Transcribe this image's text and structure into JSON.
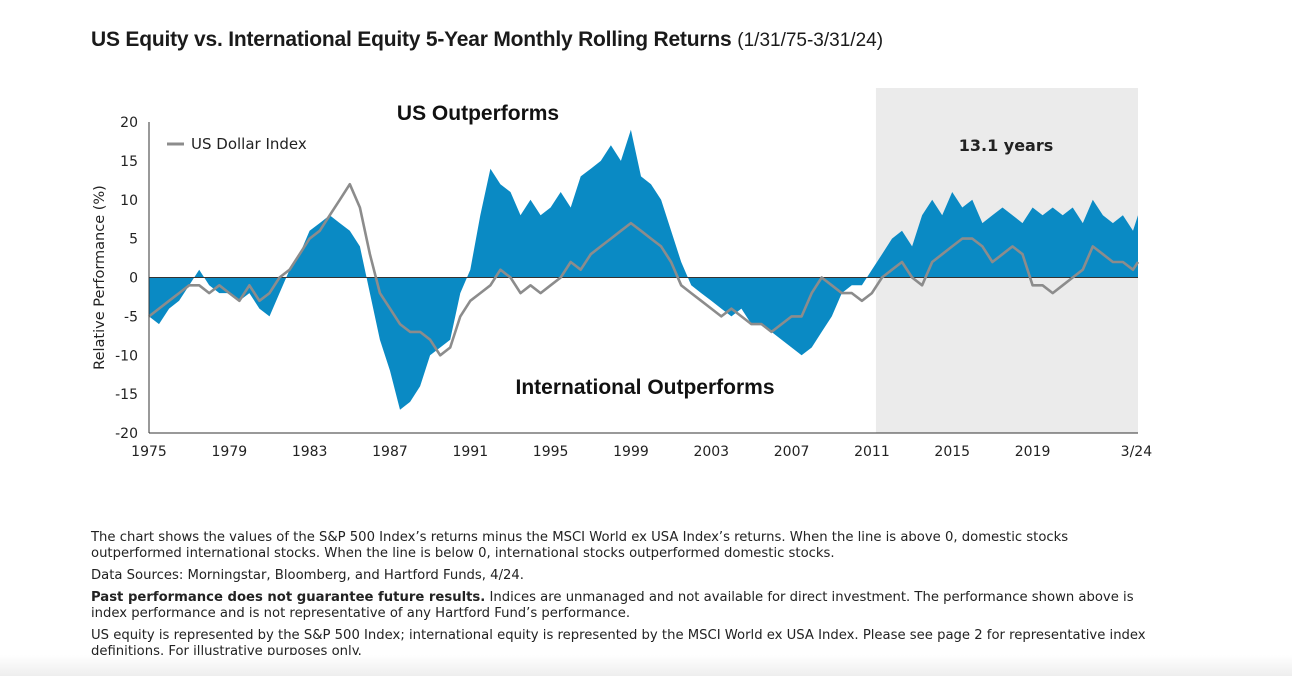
{
  "header": {
    "title": "US Equity vs. International Equity 5-Year Monthly Rolling Returns",
    "date_range": "(1/31/75-3/31/24)"
  },
  "chart_data": {
    "type": "area",
    "title": "US Equity vs. International Equity 5-Year Monthly Rolling Returns (1/31/75-3/31/24)",
    "ylabel": "Relative Performance (%)",
    "xlabel": "",
    "ylim": [
      -20,
      20
    ],
    "xlim": [
      1975.0,
      2024.25
    ],
    "yticks": [
      20,
      15,
      10,
      5,
      0,
      -5,
      -10,
      -15,
      -20
    ],
    "xticks": [
      {
        "value": 1975,
        "label": "1975"
      },
      {
        "value": 1979,
        "label": "1979"
      },
      {
        "value": 1983,
        "label": "1983"
      },
      {
        "value": 1987,
        "label": "1987"
      },
      {
        "value": 1991,
        "label": "1991"
      },
      {
        "value": 1995,
        "label": "1995"
      },
      {
        "value": 1999,
        "label": "1999"
      },
      {
        "value": 2003,
        "label": "2003"
      },
      {
        "value": 2007,
        "label": "2007"
      },
      {
        "value": 2011,
        "label": "2011"
      },
      {
        "value": 2015,
        "label": "2015"
      },
      {
        "value": 2019,
        "label": "2019"
      },
      {
        "value": 2024.17,
        "label": "3/24"
      }
    ],
    "grid": false,
    "legend": "top-left",
    "annotations": {
      "top": "US Outperforms",
      "bottom": "International Outperforms",
      "shaded_label": "13.1 years",
      "shaded_range": [
        2011.2,
        2024.25
      ]
    },
    "series": [
      {
        "kind": "area",
        "color": "#0a8ac4",
        "x": [
          1975.0,
          1975.5,
          1976.0,
          1976.5,
          1977.0,
          1977.5,
          1978.0,
          1978.5,
          1979.0,
          1979.5,
          1980.0,
          1980.5,
          1981.0,
          1981.5,
          1982.0,
          1982.5,
          1983.0,
          1983.5,
          1984.0,
          1984.5,
          1985.0,
          1985.5,
          1986.0,
          1986.5,
          1987.0,
          1987.5,
          1988.0,
          1988.5,
          1989.0,
          1989.5,
          1990.0,
          1990.5,
          1991.0,
          1991.5,
          1992.0,
          1992.5,
          1993.0,
          1993.5,
          1994.0,
          1994.5,
          1995.0,
          1995.5,
          1996.0,
          1996.5,
          1997.0,
          1997.5,
          1998.0,
          1998.5,
          1999.0,
          1999.5,
          2000.0,
          2000.5,
          2001.0,
          2001.5,
          2002.0,
          2002.5,
          2003.0,
          2003.5,
          2004.0,
          2004.5,
          2005.0,
          2005.5,
          2006.0,
          2006.5,
          2007.0,
          2007.5,
          2008.0,
          2008.5,
          2009.0,
          2009.5,
          2010.0,
          2010.5,
          2011.0,
          2011.5,
          2012.0,
          2012.5,
          2013.0,
          2013.5,
          2014.0,
          2014.5,
          2015.0,
          2015.5,
          2016.0,
          2016.5,
          2017.0,
          2017.5,
          2018.0,
          2018.5,
          2019.0,
          2019.5,
          2020.0,
          2020.5,
          2021.0,
          2021.5,
          2022.0,
          2022.5,
          2023.0,
          2023.5,
          2024.0,
          2024.25
        ],
        "values": [
          -5,
          -6,
          -4,
          -3,
          -1,
          1,
          -1,
          -2,
          -2,
          -3,
          -2,
          -4,
          -5,
          -2,
          1,
          3,
          6,
          7,
          8,
          7,
          6,
          4,
          -2,
          -8,
          -12,
          -17,
          -16,
          -14,
          -10,
          -9,
          -8,
          -2,
          1,
          8,
          14,
          12,
          11,
          8,
          10,
          8,
          9,
          11,
          9,
          13,
          14,
          15,
          17,
          15,
          19,
          13,
          12,
          10,
          6,
          2,
          -1,
          -2,
          -3,
          -4,
          -5,
          -4,
          -6,
          -6,
          -7,
          -8,
          -9,
          -10,
          -9,
          -7,
          -5,
          -2,
          -1,
          -1,
          1,
          3,
          5,
          6,
          4,
          8,
          10,
          8,
          11,
          9,
          10,
          7,
          8,
          9,
          8,
          7,
          9,
          8,
          9,
          8,
          9,
          7,
          10,
          8,
          7,
          8,
          6,
          8
        ]
      },
      {
        "kind": "line",
        "name": "US Dollar Index",
        "color": "#8c8c8c",
        "x": [
          1975.0,
          1975.5,
          1976.0,
          1976.5,
          1977.0,
          1977.5,
          1978.0,
          1978.5,
          1979.0,
          1979.5,
          1980.0,
          1980.5,
          1981.0,
          1981.5,
          1982.0,
          1982.5,
          1983.0,
          1983.5,
          1984.0,
          1984.5,
          1985.0,
          1985.5,
          1986.0,
          1986.5,
          1987.0,
          1987.5,
          1988.0,
          1988.5,
          1989.0,
          1989.5,
          1990.0,
          1990.5,
          1991.0,
          1991.5,
          1992.0,
          1992.5,
          1993.0,
          1993.5,
          1994.0,
          1994.5,
          1995.0,
          1995.5,
          1996.0,
          1996.5,
          1997.0,
          1997.5,
          1998.0,
          1998.5,
          1999.0,
          1999.5,
          2000.0,
          2000.5,
          2001.0,
          2001.5,
          2002.0,
          2002.5,
          2003.0,
          2003.5,
          2004.0,
          2004.5,
          2005.0,
          2005.5,
          2006.0,
          2006.5,
          2007.0,
          2007.5,
          2008.0,
          2008.5,
          2009.0,
          2009.5,
          2010.0,
          2010.5,
          2011.0,
          2011.5,
          2012.0,
          2012.5,
          2013.0,
          2013.5,
          2014.0,
          2014.5,
          2015.0,
          2015.5,
          2016.0,
          2016.5,
          2017.0,
          2017.5,
          2018.0,
          2018.5,
          2019.0,
          2019.5,
          2020.0,
          2020.5,
          2021.0,
          2021.5,
          2022.0,
          2022.5,
          2023.0,
          2023.5,
          2024.0,
          2024.25
        ],
        "values": [
          -5,
          -4,
          -3,
          -2,
          -1,
          -1,
          -2,
          -1,
          -2,
          -3,
          -1,
          -3,
          -2,
          0,
          1,
          3,
          5,
          6,
          8,
          10,
          12,
          9,
          3,
          -2,
          -4,
          -6,
          -7,
          -7,
          -8,
          -10,
          -9,
          -5,
          -3,
          -2,
          -1,
          1,
          0,
          -2,
          -1,
          -2,
          -1,
          0,
          2,
          1,
          3,
          4,
          5,
          6,
          7,
          6,
          5,
          4,
          2,
          -1,
          -2,
          -3,
          -4,
          -5,
          -4,
          -5,
          -6,
          -6,
          -7,
          -6,
          -5,
          -5,
          -2,
          0,
          -1,
          -2,
          -2,
          -3,
          -2,
          0,
          1,
          2,
          0,
          -1,
          2,
          3,
          4,
          5,
          5,
          4,
          2,
          3,
          4,
          3,
          -1,
          -1,
          -2,
          -1,
          0,
          1,
          4,
          3,
          2,
          2,
          1,
          2
        ]
      }
    ]
  },
  "notes": {
    "p1": "The chart shows the values of the S&P 500 Index’s returns minus the MSCI World ex USA Index’s returns. When the line is above 0, domestic stocks outperformed international stocks. When the line is below 0, international stocks outperformed domestic stocks.",
    "p2": "Data Sources: Morningstar, Bloomberg, and Hartford Funds, 4/24.",
    "p3_bold": "Past performance does not guarantee future results.",
    "p3_rest": " Indices are unmanaged and not available for direct investment. The performance shown above is index performance and is not representative of any Hartford Fund’s performance.",
    "p4": "US equity is represented by the S&P 500 Index; international equity is represented by the MSCI World ex USA Index. Please see page 2 for representative index definitions. For illustrative purposes only."
  }
}
